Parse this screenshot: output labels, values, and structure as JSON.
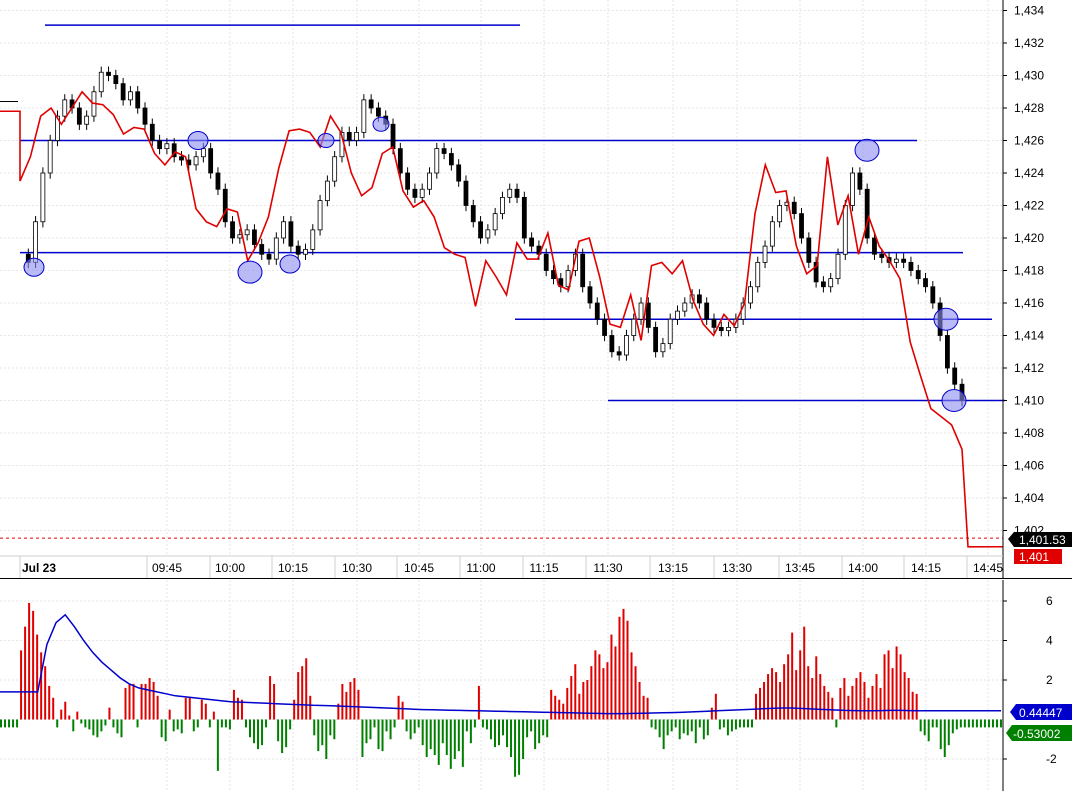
{
  "chart_data": [
    {
      "type": "candlestick",
      "date_label": "Jul 23",
      "x_tick_labels": [
        "09:45",
        "10:00",
        "10:15",
        "10:30",
        "10:45",
        "11:00",
        "11:15",
        "11:30",
        "13:15",
        "13:30",
        "13:45",
        "14:00",
        "14:15",
        "14:45"
      ],
      "y_ticks": [
        1434,
        1432,
        1430,
        1428,
        1426,
        1424,
        1422,
        1420,
        1418,
        1416,
        1414,
        1412,
        1410,
        1408,
        1406,
        1404,
        1402
      ],
      "y_tick_labels": [
        "1,434",
        "1,432",
        "1,430",
        "1,428",
        "1,426",
        "1,424",
        "1,422",
        "1,420",
        "1,418",
        "1,416",
        "1,414",
        "1,412",
        "1,410",
        "1,408",
        "1,406",
        "1,404",
        "1,402"
      ],
      "ylim": [
        1401.2,
        1434.8
      ],
      "grid": true,
      "last_price_label": "1,401.53",
      "last_price": 1401.53,
      "red_line_label": "1,401",
      "red_line_last": 1401,
      "colors": {
        "red_line": "#e00000",
        "levels": "#0000cc",
        "candle_up": "#ffffff",
        "candle_down": "#000000",
        "circle_fill": "#8c8cf0"
      },
      "close_path": [
        1419,
        1418.5,
        1421,
        1424,
        1426,
        1427.5,
        1428.5,
        1428,
        1427,
        1427.5,
        1429,
        1430.2,
        1430,
        1429.5,
        1428.5,
        1429,
        1428,
        1427,
        1426,
        1425.5,
        1425.8,
        1425,
        1424.8,
        1424.5,
        1425,
        1425.5,
        1424,
        1423,
        1421,
        1420,
        1420.2,
        1420.5,
        1419.6,
        1419,
        1418.7,
        1420,
        1421,
        1419.5,
        1419,
        1419.3,
        1420.5,
        1422.3,
        1423.5,
        1425,
        1426.5,
        1426,
        1426.5,
        1428.5,
        1428,
        1427.5,
        1427,
        1425.5,
        1424,
        1423,
        1422.5,
        1423,
        1424,
        1425.5,
        1425.2,
        1424.5,
        1423.5,
        1422,
        1421,
        1420,
        1420.5,
        1421.5,
        1422.5,
        1423,
        1422.5,
        1420,
        1419.5,
        1419,
        1418,
        1417.5,
        1417,
        1418,
        1419,
        1417,
        1416,
        1415,
        1414,
        1413,
        1412.8,
        1414,
        1415,
        1416,
        1414.5,
        1413,
        1413.5,
        1415,
        1415.5,
        1416,
        1416.5,
        1416,
        1415,
        1414.5,
        1414.3,
        1414.5,
        1415,
        1416,
        1417,
        1418.5,
        1419.5,
        1421,
        1422,
        1422.2,
        1421.5,
        1420,
        1418.5,
        1417.3,
        1417,
        1417.5,
        1419,
        1422,
        1424,
        1423,
        1420,
        1419,
        1418.8,
        1418.5,
        1418.7,
        1418.5,
        1418,
        1417.5,
        1417,
        1416,
        1414,
        1412,
        1411,
        1410
      ],
      "red_path": [
        1423.5,
        1425,
        1427.5,
        1428,
        1427,
        1428,
        1429,
        1428.3,
        1428.2,
        1427.6,
        1426.4,
        1426.8,
        1426.7,
        1425.2,
        1424.5,
        1425.3,
        1425,
        1421.8,
        1421,
        1420.7,
        1421.8,
        1421.6,
        1418.6,
        1419.7,
        1421.3,
        1424.3,
        1426.6,
        1426.7,
        1426.5,
        1425.6,
        1427.5,
        1426.5,
        1424,
        1422.6,
        1423.1,
        1425.2,
        1425.6,
        1422.9,
        1421.9,
        1422.3,
        1421.3,
        1419.4,
        1419,
        1418.8,
        1415.8,
        1418.6,
        1417.6,
        1416.5,
        1419.7,
        1418.7,
        1418.7,
        1420.3,
        1417.1,
        1416.8,
        1419.8,
        1420,
        1417.6,
        1414.7,
        1414.5,
        1416.5,
        1413.7,
        1418.3,
        1418.5,
        1417.8,
        1418.6,
        1416.2,
        1414.7,
        1414,
        1415.3,
        1414.6,
        1416,
        1421.5,
        1424.5,
        1422.8,
        1422.9,
        1419.5,
        1417.8,
        1418.3,
        1425,
        1420.8,
        1422.6,
        1419,
        1421.3,
        1419.5,
        1418.6,
        1417.5,
        1413.6,
        1411.5,
        1409.5,
        1409,
        1408.5,
        1407,
        1401
      ]
    },
    {
      "type": "bar",
      "y_ticks": [
        6,
        4,
        2,
        -2
      ],
      "y_tick_labels": [
        "6",
        "4",
        "2",
        "-2"
      ],
      "ylim": [
        -4.2,
        7.2
      ],
      "series": [
        {
          "label": "0.44447",
          "value": 0.44447,
          "color": "#0000cc"
        },
        {
          "label": "-0.53002",
          "value": -0.53002,
          "color": "#008000"
        }
      ],
      "bar_values": [
        -0.4,
        -0.4,
        -0.4,
        -0.4,
        -0.4,
        3.5,
        4.7,
        5.9,
        5.5,
        4.3,
        3.4,
        2.7,
        1.7,
        1.1,
        -0.4,
        0.5,
        0.9,
        0.2,
        -0.6,
        0.4,
        -0.2,
        -0.4,
        -0.5,
        -0.8,
        -0.9,
        -0.6,
        -0.3,
        0.6,
        -0.4,
        -0.7,
        -0.9,
        1.6,
        1.8,
        1.8,
        -0.4,
        1.8,
        1.8,
        2.1,
        1.9,
        1.2,
        -0.9,
        -1.1,
        0.5,
        -0.6,
        -0.5,
        -0.7,
        1.1,
        1.1,
        -0.6,
        -0.4,
        1.0,
        0.8,
        -0.4,
        0.4,
        -2.6,
        -0.4,
        -0.4,
        -0.5,
        1.5,
        1.1,
        1.0,
        -0.4,
        -0.9,
        -1.2,
        -1.5,
        -1.3,
        -0.4,
        2.2,
        1.8,
        -1.1,
        -1.7,
        -1.4,
        -0.5,
        1.0,
        2.4,
        2.7,
        3.1,
        1.2,
        -0.8,
        -1.6,
        -1.3,
        -2.0,
        -0.8,
        -1.0,
        0.8,
        1.8,
        1.4,
        1.9,
        2.1,
        1.5,
        -1.9,
        -1.2,
        -1.0,
        -0.4,
        -1.5,
        -1.6,
        -0.6,
        -1.0,
        -0.4,
        1.2,
        0.9,
        -0.6,
        -1.0,
        -0.7,
        -0.4,
        -1.3,
        -1.9,
        -1.5,
        -1.8,
        -2.3,
        -1.2,
        -1.8,
        -2.5,
        -2.0,
        -1.6,
        -2.4,
        -0.6,
        -1.2,
        -0.4,
        1.7,
        -0.4,
        -0.5,
        -1.0,
        -1.4,
        -1.3,
        -0.8,
        -1.4,
        -1.9,
        -2.9,
        -2.8,
        -2.0,
        -0.9,
        -0.6,
        -1.5,
        -1.2,
        -0.8,
        -0.9,
        1.5,
        1.2,
        1.0,
        0.8,
        1.6,
        2.2,
        2.8,
        1.3,
        1.9,
        2.0,
        2.7,
        3.5,
        3.3,
        2.6,
        2.9,
        4.3,
        3.7,
        5.2,
        5.6,
        5.0,
        3.4,
        2.7,
        1.9,
        1.2,
        1.1,
        -0.4,
        -0.5,
        -0.9,
        -1.5,
        -0.8,
        -0.6,
        -0.4,
        -1.0,
        -0.7,
        -0.8,
        -0.6,
        -1.2,
        -0.4,
        -1.0,
        -0.8,
        0.6,
        1.3,
        -0.5,
        -0.4,
        -0.8,
        -0.6,
        -0.5,
        -0.4,
        -0.4,
        -0.4,
        -0.4,
        1.3,
        1.6,
        1.9,
        2.3,
        2.6,
        2.4,
        1.9,
        2.8,
        3.3,
        4.4,
        2.5,
        3.5,
        4.7,
        2.7,
        2.1,
        3.2,
        2.3,
        1.7,
        1.4,
        1.1,
        -0.4,
        1.6,
        2.1,
        1.2,
        1.7,
        2.1,
        2.4,
        1.9,
        1.1,
        1.7,
        2.3,
        1.6,
        3.3,
        3.5,
        2.6,
        3.7,
        3.3,
        2.4,
        2.1,
        1.4,
        1.3,
        -0.6,
        -0.8,
        -1.1,
        -0.4,
        -0.4,
        -1.5,
        -1.9,
        -1.3,
        -0.7,
        -0.5,
        -0.4,
        -0.4,
        -0.4,
        -0.4,
        -0.4,
        -0.4,
        -0.4,
        -0.4,
        -0.4,
        -0.4,
        -0.4
      ],
      "avg_path": [
        1.4,
        1.4,
        1.4,
        1.4,
        1.4,
        3.8,
        4.9,
        5.3,
        4.7,
        4.0,
        3.4,
        2.9,
        2.5,
        2.1,
        1.8,
        1.6,
        1.5,
        1.4,
        1.3,
        1.2,
        1.15,
        1.1,
        1.05,
        1.0,
        0.95,
        0.9,
        0.88,
        0.86,
        0.84,
        0.82,
        0.8,
        0.78,
        0.76,
        0.74,
        0.72,
        0.71,
        0.7,
        0.68,
        0.66,
        0.64,
        0.62,
        0.6,
        0.58,
        0.56,
        0.54,
        0.52,
        0.5,
        0.49,
        0.48,
        0.47,
        0.46,
        0.45,
        0.44,
        0.43,
        0.42,
        0.41,
        0.4,
        0.39,
        0.38,
        0.37,
        0.36,
        0.35,
        0.34,
        0.33,
        0.32,
        0.31,
        0.3,
        0.3,
        0.3,
        0.31,
        0.32,
        0.33,
        0.34,
        0.35,
        0.36,
        0.38,
        0.4,
        0.42,
        0.44,
        0.46,
        0.48,
        0.5,
        0.52,
        0.54,
        0.56,
        0.58,
        0.58,
        0.56,
        0.54,
        0.52,
        0.5,
        0.48,
        0.46,
        0.45,
        0.44,
        0.44,
        0.45,
        0.46,
        0.46,
        0.45,
        0.44,
        0.44,
        0.44,
        0.44,
        0.44,
        0.44,
        0.44,
        0.44,
        0.44,
        0.44
      ]
    }
  ]
}
